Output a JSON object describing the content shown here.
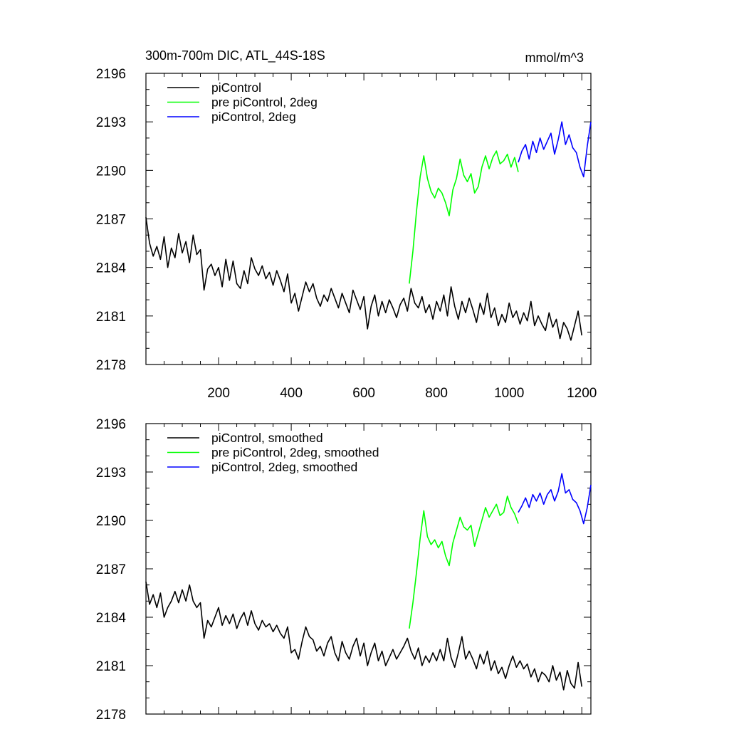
{
  "figure": {
    "title_left": "300m-700m DIC, ATL_44S-18S",
    "title_right": "mmol/m^3"
  },
  "colors": {
    "piControl": "#000000",
    "pre_piControl_2deg": "#00ff00",
    "piControl_2deg": "#0000ff"
  },
  "chart_data": [
    {
      "type": "line",
      "panel": "top",
      "title": "300m-700m DIC, ATL_44S-18S",
      "units": "mmol/m^3",
      "xlim": [
        0,
        1225
      ],
      "ylim": [
        2178,
        2196
      ],
      "x_ticks": [
        200,
        400,
        600,
        800,
        1000,
        1200
      ],
      "x_tick_labels": [
        "200",
        "400",
        "600",
        "800",
        "1000",
        "1200"
      ],
      "y_ticks": [
        2178,
        2181,
        2184,
        2187,
        2190,
        2193,
        2196
      ],
      "y_tick_labels": [
        "2178",
        "2181",
        "2184",
        "2187",
        "2190",
        "2193",
        "2196"
      ],
      "legend_position": "top-left",
      "series": [
        {
          "name": "piControl",
          "color": "#000000",
          "x": [
            0,
            10,
            20,
            30,
            40,
            50,
            60,
            70,
            80,
            90,
            100,
            110,
            120,
            130,
            140,
            150,
            160,
            170,
            180,
            190,
            200,
            210,
            220,
            230,
            240,
            250,
            260,
            270,
            280,
            290,
            300,
            310,
            320,
            330,
            340,
            350,
            360,
            370,
            380,
            390,
            400,
            410,
            420,
            430,
            440,
            450,
            460,
            470,
            480,
            490,
            500,
            510,
            520,
            530,
            540,
            550,
            560,
            570,
            580,
            590,
            600,
            610,
            620,
            630,
            640,
            650,
            660,
            670,
            680,
            690,
            700,
            710,
            720,
            730,
            740,
            750,
            760,
            770,
            780,
            790,
            800,
            810,
            820,
            830,
            840,
            850,
            860,
            870,
            880,
            890,
            900,
            910,
            920,
            930,
            940,
            950,
            960,
            970,
            980,
            990,
            1000,
            1010,
            1020,
            1030,
            1040,
            1050,
            1060,
            1070,
            1080,
            1090,
            1100,
            1110,
            1120,
            1130,
            1140,
            1150,
            1160,
            1170,
            1180,
            1190,
            1200
          ],
          "y": [
            2187.1,
            2185.5,
            2184.7,
            2185.3,
            2184.5,
            2185.9,
            2184.0,
            2185.2,
            2184.6,
            2186.1,
            2184.9,
            2185.6,
            2184.3,
            2186.0,
            2184.8,
            2185.1,
            2182.6,
            2183.9,
            2184.2,
            2183.5,
            2184.0,
            2182.8,
            2184.5,
            2183.2,
            2184.4,
            2183.0,
            2182.7,
            2183.8,
            2183.0,
            2184.6,
            2183.9,
            2183.5,
            2184.1,
            2183.3,
            2183.7,
            2182.9,
            2183.8,
            2183.2,
            2182.5,
            2183.6,
            2181.8,
            2182.4,
            2181.3,
            2182.2,
            2183.1,
            2182.5,
            2183.0,
            2182.1,
            2181.6,
            2182.3,
            2181.9,
            2182.7,
            2182.1,
            2181.5,
            2182.4,
            2181.8,
            2181.2,
            2182.6,
            2182.0,
            2181.4,
            2182.2,
            2180.2,
            2181.6,
            2182.3,
            2181.0,
            2181.9,
            2181.2,
            2182.0,
            2181.5,
            2180.9,
            2181.7,
            2182.1,
            2181.3,
            2182.7,
            2181.8,
            2181.5,
            2182.2,
            2181.2,
            2181.7,
            2180.8,
            2181.9,
            2181.3,
            2182.3,
            2181.0,
            2182.8,
            2181.6,
            2180.8,
            2181.9,
            2181.2,
            2182.1,
            2181.4,
            2180.6,
            2181.8,
            2181.1,
            2182.4,
            2180.9,
            2181.5,
            2180.4,
            2181.1,
            2180.6,
            2181.8,
            2180.9,
            2181.3,
            2180.5,
            2181.2,
            2180.7,
            2181.9,
            2180.4,
            2181.0,
            2180.5,
            2180.1,
            2181.2,
            2180.3,
            2180.8,
            2179.6,
            2180.6,
            2180.2,
            2179.5,
            2180.4,
            2181.3,
            2179.8
          ]
        },
        {
          "name": "pre piControl, 2deg",
          "color": "#00ff00",
          "x": [
            725,
            735,
            745,
            755,
            765,
            775,
            785,
            795,
            805,
            815,
            825,
            835,
            845,
            855,
            865,
            875,
            885,
            895,
            905,
            915,
            925,
            935,
            945,
            955,
            965,
            975,
            985,
            995,
            1005,
            1015,
            1025
          ],
          "y": [
            2183.0,
            2185.0,
            2187.5,
            2189.6,
            2190.9,
            2189.5,
            2188.7,
            2188.3,
            2188.9,
            2188.6,
            2188.0,
            2187.2,
            2188.8,
            2189.5,
            2190.7,
            2189.7,
            2189.3,
            2189.8,
            2188.6,
            2189.0,
            2190.2,
            2190.9,
            2190.1,
            2190.8,
            2191.2,
            2190.4,
            2190.6,
            2191.0,
            2190.2,
            2190.8,
            2189.9
          ]
        },
        {
          "name": "piControl, 2deg",
          "color": "#0000ff",
          "x": [
            1025,
            1035,
            1045,
            1055,
            1065,
            1075,
            1085,
            1095,
            1105,
            1115,
            1125,
            1135,
            1145,
            1155,
            1165,
            1175,
            1185,
            1195,
            1205,
            1215,
            1225
          ],
          "y": [
            2190.5,
            2191.2,
            2191.6,
            2190.7,
            2191.8,
            2191.1,
            2192.0,
            2191.3,
            2191.8,
            2192.3,
            2191.0,
            2191.9,
            2193.0,
            2191.6,
            2192.2,
            2191.4,
            2191.1,
            2190.2,
            2189.6,
            2191.5,
            2193.0
          ]
        }
      ]
    },
    {
      "type": "line",
      "panel": "bottom",
      "xlim": [
        0,
        1225
      ],
      "ylim": [
        2178,
        2196
      ],
      "x_ticks": [
        200,
        400,
        600,
        800,
        1000,
        1200
      ],
      "y_ticks": [
        2178,
        2181,
        2184,
        2187,
        2190,
        2193,
        2196
      ],
      "y_tick_labels": [
        "2178",
        "2181",
        "2184",
        "2187",
        "2190",
        "2193",
        "2196"
      ],
      "legend_position": "top-left",
      "series": [
        {
          "name": "piControl, smoothed",
          "color": "#000000",
          "x": [
            0,
            10,
            20,
            30,
            40,
            50,
            60,
            70,
            80,
            90,
            100,
            110,
            120,
            130,
            140,
            150,
            160,
            170,
            180,
            190,
            200,
            210,
            220,
            230,
            240,
            250,
            260,
            270,
            280,
            290,
            300,
            310,
            320,
            330,
            340,
            350,
            360,
            370,
            380,
            390,
            400,
            410,
            420,
            430,
            440,
            450,
            460,
            470,
            480,
            490,
            500,
            510,
            520,
            530,
            540,
            550,
            560,
            570,
            580,
            590,
            600,
            610,
            620,
            630,
            640,
            650,
            660,
            670,
            680,
            690,
            700,
            710,
            720,
            730,
            740,
            750,
            760,
            770,
            780,
            790,
            800,
            810,
            820,
            830,
            840,
            850,
            860,
            870,
            880,
            890,
            900,
            910,
            920,
            930,
            940,
            950,
            960,
            970,
            980,
            990,
            1000,
            1010,
            1020,
            1030,
            1040,
            1050,
            1060,
            1070,
            1080,
            1090,
            1100,
            1110,
            1120,
            1130,
            1140,
            1150,
            1160,
            1170,
            1180,
            1190,
            1200
          ],
          "y": [
            2186.2,
            2184.8,
            2185.4,
            2184.6,
            2185.5,
            2184.0,
            2184.6,
            2185.0,
            2185.6,
            2184.9,
            2185.7,
            2185.0,
            2186.0,
            2185.0,
            2184.6,
            2184.9,
            2182.7,
            2183.8,
            2183.4,
            2184.0,
            2184.6,
            2183.5,
            2184.1,
            2183.6,
            2184.2,
            2183.3,
            2183.9,
            2184.3,
            2183.5,
            2184.4,
            2183.6,
            2183.2,
            2183.8,
            2183.4,
            2183.6,
            2183.1,
            2183.5,
            2183.0,
            2182.7,
            2183.4,
            2181.8,
            2182.0,
            2181.4,
            2182.5,
            2183.4,
            2182.8,
            2182.6,
            2181.9,
            2182.2,
            2181.6,
            2182.4,
            2182.8,
            2181.8,
            2181.3,
            2182.5,
            2181.8,
            2181.4,
            2182.2,
            2182.7,
            2181.6,
            2182.4,
            2181.0,
            2181.8,
            2182.4,
            2181.3,
            2181.9,
            2181.0,
            2181.5,
            2182.0,
            2181.4,
            2181.8,
            2182.2,
            2182.7,
            2181.9,
            2181.4,
            2182.1,
            2181.0,
            2181.6,
            2181.2,
            2181.8,
            2181.3,
            2182.0,
            2181.3,
            2182.7,
            2181.5,
            2180.9,
            2181.8,
            2182.8,
            2181.4,
            2181.9,
            2181.4,
            2180.8,
            2181.7,
            2181.1,
            2181.9,
            2180.7,
            2181.3,
            2180.5,
            2180.9,
            2180.2,
            2181.0,
            2181.6,
            2180.9,
            2181.3,
            2180.8,
            2181.1,
            2180.3,
            2180.8,
            2180.0,
            2180.6,
            2180.4,
            2180.0,
            2181.0,
            2180.1,
            2180.6,
            2179.5,
            2180.7,
            2179.9,
            2179.6,
            2181.2,
            2179.7
          ]
        },
        {
          "name": "pre piControl, 2deg, smoothed",
          "color": "#00ff00",
          "x": [
            725,
            735,
            745,
            755,
            765,
            775,
            785,
            795,
            805,
            815,
            825,
            835,
            845,
            855,
            865,
            875,
            885,
            895,
            905,
            915,
            925,
            935,
            945,
            955,
            965,
            975,
            985,
            995,
            1005,
            1015,
            1025
          ],
          "y": [
            2183.3,
            2184.9,
            2186.8,
            2188.9,
            2190.6,
            2189.0,
            2188.5,
            2188.8,
            2188.3,
            2188.7,
            2187.8,
            2187.2,
            2188.6,
            2189.4,
            2190.2,
            2189.6,
            2189.4,
            2189.7,
            2188.4,
            2189.2,
            2190.0,
            2190.8,
            2190.2,
            2190.6,
            2191.0,
            2190.3,
            2190.5,
            2191.5,
            2190.8,
            2190.4,
            2189.8
          ]
        },
        {
          "name": "piControl, 2deg, smoothed",
          "color": "#0000ff",
          "x": [
            1025,
            1035,
            1045,
            1055,
            1065,
            1075,
            1085,
            1095,
            1105,
            1115,
            1125,
            1135,
            1145,
            1155,
            1165,
            1175,
            1185,
            1195,
            1205,
            1215,
            1225
          ],
          "y": [
            2190.5,
            2190.9,
            2191.4,
            2190.8,
            2191.6,
            2191.2,
            2191.7,
            2191.0,
            2191.6,
            2191.9,
            2191.2,
            2191.8,
            2192.9,
            2191.7,
            2191.9,
            2191.3,
            2191.1,
            2190.6,
            2189.8,
            2190.8,
            2192.2
          ]
        }
      ]
    }
  ]
}
